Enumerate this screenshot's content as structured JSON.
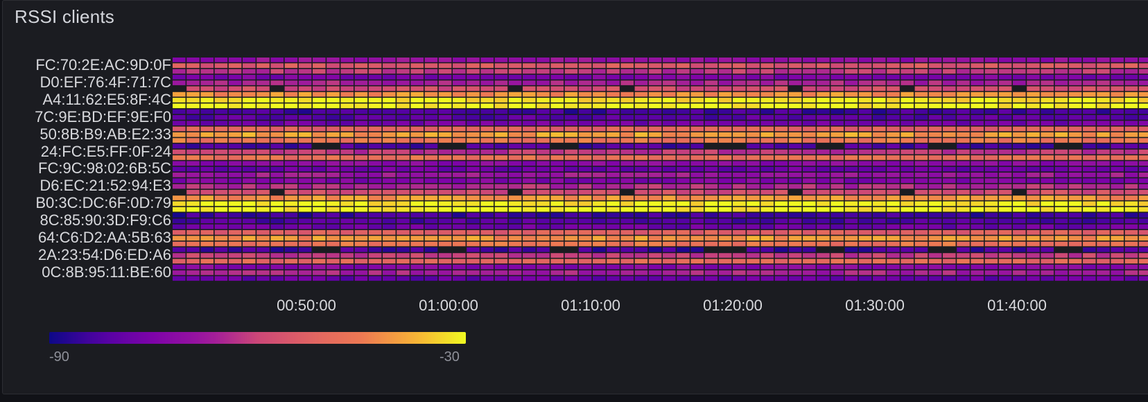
{
  "panel": {
    "title": "RSSI clients"
  },
  "chart_data": {
    "type": "heatmap",
    "title": "RSSI clients",
    "rows": [
      "FC:70:2E:AC:9D:0F",
      "D0:EF:76:4F:71:7C",
      "A4:11:62:E5:8F:4C",
      "7C:9E:BD:EF:9E:F0",
      "50:8B:B9:AB:E2:33",
      "24:FC:E5:FF:0F:24",
      "FC:9C:98:02:6B:5C",
      "D6:EC:21:52:94:E3",
      "B0:3C:DC:6F:0D:79",
      "8C:85:90:3D:F9:C6",
      "64:C6:D2:AA:5B:63",
      "2A:23:54:D6:ED:A6",
      "0C:8B:95:11:BE:60"
    ],
    "x_ticks": [
      "00:50:00",
      "01:00:00",
      "01:10:00",
      "01:20:00",
      "01:30:00",
      "01:40:00"
    ],
    "time_range_minutes": [
      40,
      105
    ],
    "row_bands": [
      [
        -70,
        -55,
        -62
      ],
      [
        -75,
        -66,
        -58
      ],
      [
        -42,
        -32,
        -30
      ],
      [
        -84,
        -81,
        -77
      ],
      [
        -52,
        -40,
        -46
      ],
      [
        -83,
        -62,
        -48
      ],
      [
        -72,
        -78,
        -68
      ],
      [
        -74,
        -64,
        -58
      ],
      [
        -41,
        -31,
        -30
      ],
      [
        -85,
        -82,
        -78
      ],
      [
        -53,
        -41,
        -47
      ],
      [
        -84,
        -61,
        -50
      ],
      [
        -73,
        -66,
        -79
      ]
    ],
    "legend": {
      "min": "-90",
      "max": "-30",
      "colormap": "plasma"
    },
    "colors": {
      "low": "#0d0887",
      "mid": "#cc4778",
      "high": "#f0f921",
      "missing": "#1b1c21"
    }
  }
}
